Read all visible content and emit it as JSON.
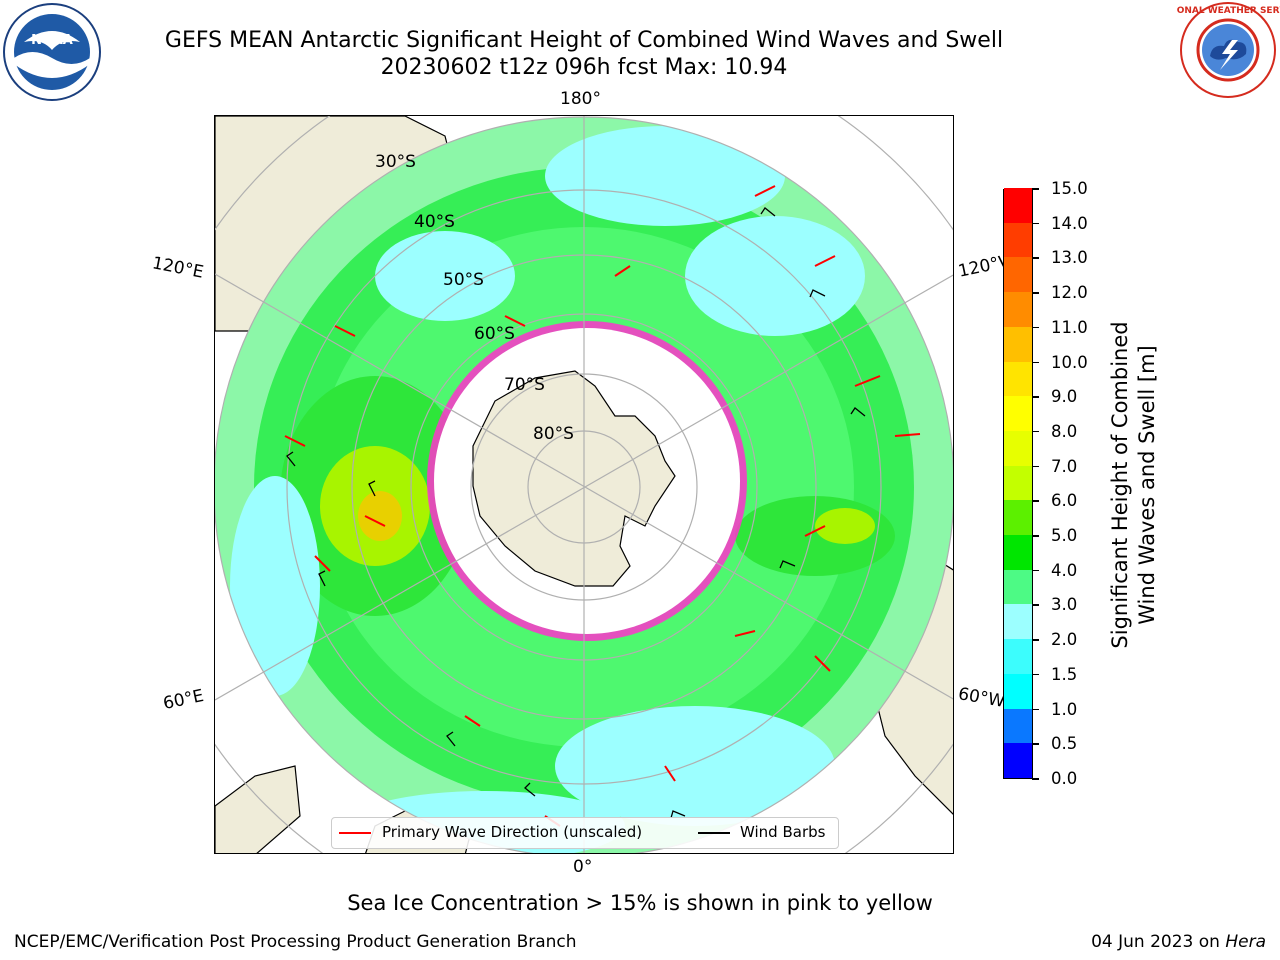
{
  "title": {
    "line1": "GEFS MEAN Antarctic Significant Height of Combined Wind Waves and Swell",
    "line2": "20230602 t12z 096h fcst   Max: 10.94"
  },
  "logos": {
    "left": {
      "name": "noaa-logo",
      "text": "NOAA"
    },
    "right": {
      "name": "nws-logo",
      "text": "NATIONAL WEATHER SERVICE"
    }
  },
  "map": {
    "projection": "south-polar-stereographic",
    "longitude_labels": {
      "top": "180°",
      "bottom": "0°",
      "upper_left": "120°E",
      "upper_right": "120°W",
      "lower_left": "60°E",
      "lower_right": "60°W"
    },
    "latitude_labels": [
      "30°S",
      "40°S",
      "50°S",
      "60°S",
      "70°S",
      "80°S"
    ],
    "colors": {
      "land": "#efecd9",
      "ice_edge": "#ff33cc",
      "gridline": "#b0b0b0"
    }
  },
  "colorbar": {
    "label_line1": "Significant Height of Combined",
    "label_line2": "Wind Waves and Swell [m]",
    "ticks": [
      "0.0",
      "0.5",
      "1.0",
      "1.5",
      "2.0",
      "3.0",
      "4.0",
      "5.0",
      "6.0",
      "7.0",
      "8.0",
      "9.0",
      "10.0",
      "11.0",
      "12.0",
      "13.0",
      "14.0",
      "15.0"
    ],
    "colors": [
      "#0000ff",
      "#0a78ff",
      "#00ffff",
      "#3cfdfd",
      "#9cffff",
      "#4dfa85",
      "#00e600",
      "#5cf000",
      "#c3ff00",
      "#e7ff00",
      "#ffff00",
      "#ffe400",
      "#ffbf00",
      "#ff8c00",
      "#ff6600",
      "#ff3d00",
      "#ff0000"
    ]
  },
  "legend": {
    "items": [
      {
        "label": "Primary Wave Direction (unscaled)",
        "color": "#ff0000"
      },
      {
        "label": "Wind Barbs",
        "color": "#000000"
      }
    ]
  },
  "note": "Sea Ice Concentration > 15% is shown in pink to yellow",
  "footer": {
    "left": "NCEP/EMC/Verification Post Processing Product Generation Branch",
    "right_prefix": "04 Jun 2023 on ",
    "right_host": "Hera"
  }
}
